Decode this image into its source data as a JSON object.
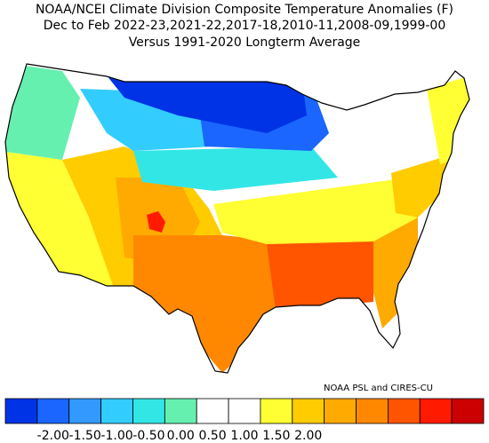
{
  "title": {
    "line1": "NOAA/NCEI Climate Division Composite Temperature Anomalies (F)",
    "line2": "Dec to Feb  2022-23,2021-22,2017-18,2010-11,2008-09,1999-00",
    "line3": "Versus 1991-2020 Longterm Average"
  },
  "credit": "NOAA PSL and CIRES-CU",
  "colorbar": {
    "colors": [
      "#0033e6",
      "#1a66ff",
      "#3399ff",
      "#33ccff",
      "#33e6e6",
      "#66f0b0",
      "#ffffff",
      "#ffffff",
      "#ffff33",
      "#ffcc00",
      "#ffaa00",
      "#ff8800",
      "#ff5500",
      "#ff1a00",
      "#cc0000"
    ],
    "tick_labels": [
      "-2.00",
      "-1.50",
      "-1.00",
      "-0.50",
      "0.00",
      "0.50",
      "1.00",
      "1.50",
      "2.00"
    ]
  },
  "regions": [
    {
      "name": "pacific-northwest-coast",
      "color": "#66f0b0"
    },
    {
      "name": "northern-rockies",
      "color": "#33ccff"
    },
    {
      "name": "northern-plains",
      "color": "#0033e6"
    },
    {
      "name": "upper-midwest",
      "color": "#1a66ff"
    },
    {
      "name": "central-plains",
      "color": "#33e6e6"
    },
    {
      "name": "great-basin",
      "color": "#ffffff"
    },
    {
      "name": "california",
      "color": "#ffff33"
    },
    {
      "name": "southwest",
      "color": "#ffcc00"
    },
    {
      "name": "four-corners-hotspot",
      "color": "#ff1a00"
    },
    {
      "name": "southern-plains",
      "color": "#ff8800"
    },
    {
      "name": "texas",
      "color": "#ff8800"
    },
    {
      "name": "deep-south",
      "color": "#ff5500"
    },
    {
      "name": "southeast",
      "color": "#ffaa00"
    },
    {
      "name": "ohio-valley",
      "color": "#ffff33"
    },
    {
      "name": "mid-atlantic",
      "color": "#ffcc00"
    },
    {
      "name": "new-england",
      "color": "#ffff33"
    },
    {
      "name": "great-lakes",
      "color": "#ffffff"
    }
  ]
}
